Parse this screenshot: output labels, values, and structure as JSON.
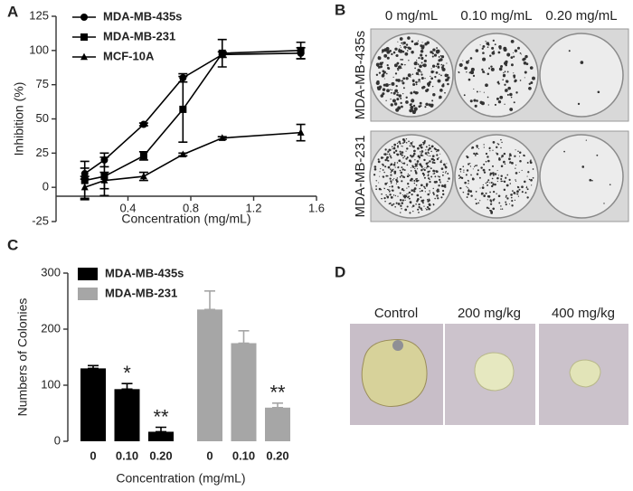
{
  "chart_data": [
    {
      "type": "line",
      "panel_label": "A",
      "xlabel": "Concentration (mg/mL)",
      "ylabel": "Inhibition (%)",
      "x": [
        0.125,
        0.25,
        0.5,
        0.75,
        1.0,
        1.5
      ],
      "series": [
        {
          "name": "MDA-MB-435s",
          "color": "#000000",
          "marker": "circle",
          "values": [
            10,
            20,
            46,
            80,
            97,
            98
          ],
          "errors": [
            4,
            5,
            1,
            3,
            2,
            4
          ]
        },
        {
          "name": "MDA-MB-231",
          "color": "#000000",
          "marker": "square",
          "values": [
            5,
            8,
            23,
            57,
            98,
            100
          ],
          "errors": [
            14,
            14,
            3,
            24,
            10,
            6
          ]
        },
        {
          "name": "MCF-10A",
          "color": "#000000",
          "marker": "triangle",
          "values": [
            0,
            5,
            8,
            24,
            36,
            40
          ],
          "errors": [
            8,
            6,
            3,
            1,
            1,
            6
          ]
        }
      ],
      "xlim": [
        0,
        1.6
      ],
      "xticks": [
        0.4,
        0.8,
        1.2,
        1.6
      ],
      "ylim": [
        -25,
        125
      ],
      "yticks": [
        -25,
        0,
        25,
        50,
        75,
        100,
        125
      ],
      "legend": "top-left"
    },
    {
      "type": "bar",
      "panel_label": "C",
      "xlabel": "Concentration (mg/mL)",
      "ylabel": "Numbers of Colonies",
      "categories": [
        "0",
        "0.10",
        "0.20"
      ],
      "series": [
        {
          "name": "MDA-MB-435s",
          "color": "#000000",
          "values": [
            130,
            93,
            17
          ],
          "errors": [
            5,
            10,
            8
          ]
        },
        {
          "name": "MDA-MB-231",
          "color": "#a6a6a6",
          "values": [
            235,
            175,
            60
          ],
          "errors": [
            33,
            22,
            8
          ]
        }
      ],
      "annotations": [
        {
          "text": "*",
          "series": 0,
          "index": 1
        },
        {
          "text": "**",
          "series": 0,
          "index": 2
        },
        {
          "text": "**",
          "series": 1,
          "index": 2
        }
      ],
      "ylim": [
        0,
        300
      ],
      "yticks": [
        0,
        100,
        200,
        300
      ],
      "legend": "top-left"
    }
  ],
  "image_panels": [
    {
      "panel_label": "B",
      "columns": [
        "0 mg/mL",
        "0.10 mg/mL",
        "0.20 mg/mL"
      ],
      "rows": [
        "MDA-MB-435s",
        "MDA-MB-231"
      ]
    },
    {
      "panel_label": "D",
      "columns": [
        "Control",
        "200 mg/kg",
        "400 mg/kg"
      ]
    }
  ]
}
